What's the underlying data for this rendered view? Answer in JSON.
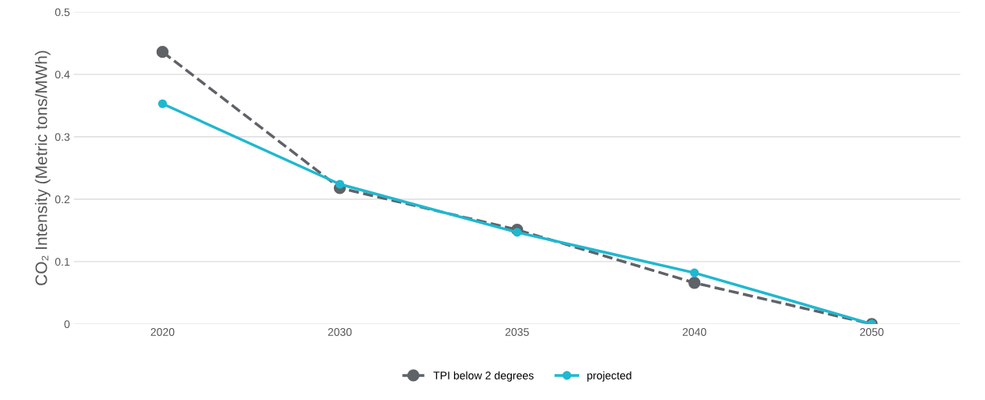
{
  "chart_data": {
    "type": "line",
    "ylabel": "CO₂ Intensity (Metric tons/MWh)",
    "categories": [
      "2020",
      "2030",
      "2035",
      "2040",
      "2050"
    ],
    "series": [
      {
        "name": "TPI below 2 degrees",
        "color": "#5f6368",
        "values": [
          0.436,
          0.218,
          0.151,
          0.066,
          0
        ],
        "line_style": "dashed"
      },
      {
        "name": "projected",
        "color": "#1fb8d0",
        "values": [
          0.353,
          0.224,
          0.147,
          0.082,
          0
        ],
        "line_style": "solid"
      }
    ],
    "ylim": [
      0,
      0.5
    ],
    "yticks": [
      0,
      0.1,
      0.2,
      0.3,
      0.4,
      0.5
    ],
    "grid": "y",
    "legend": "bottom",
    "marker": "circle"
  }
}
